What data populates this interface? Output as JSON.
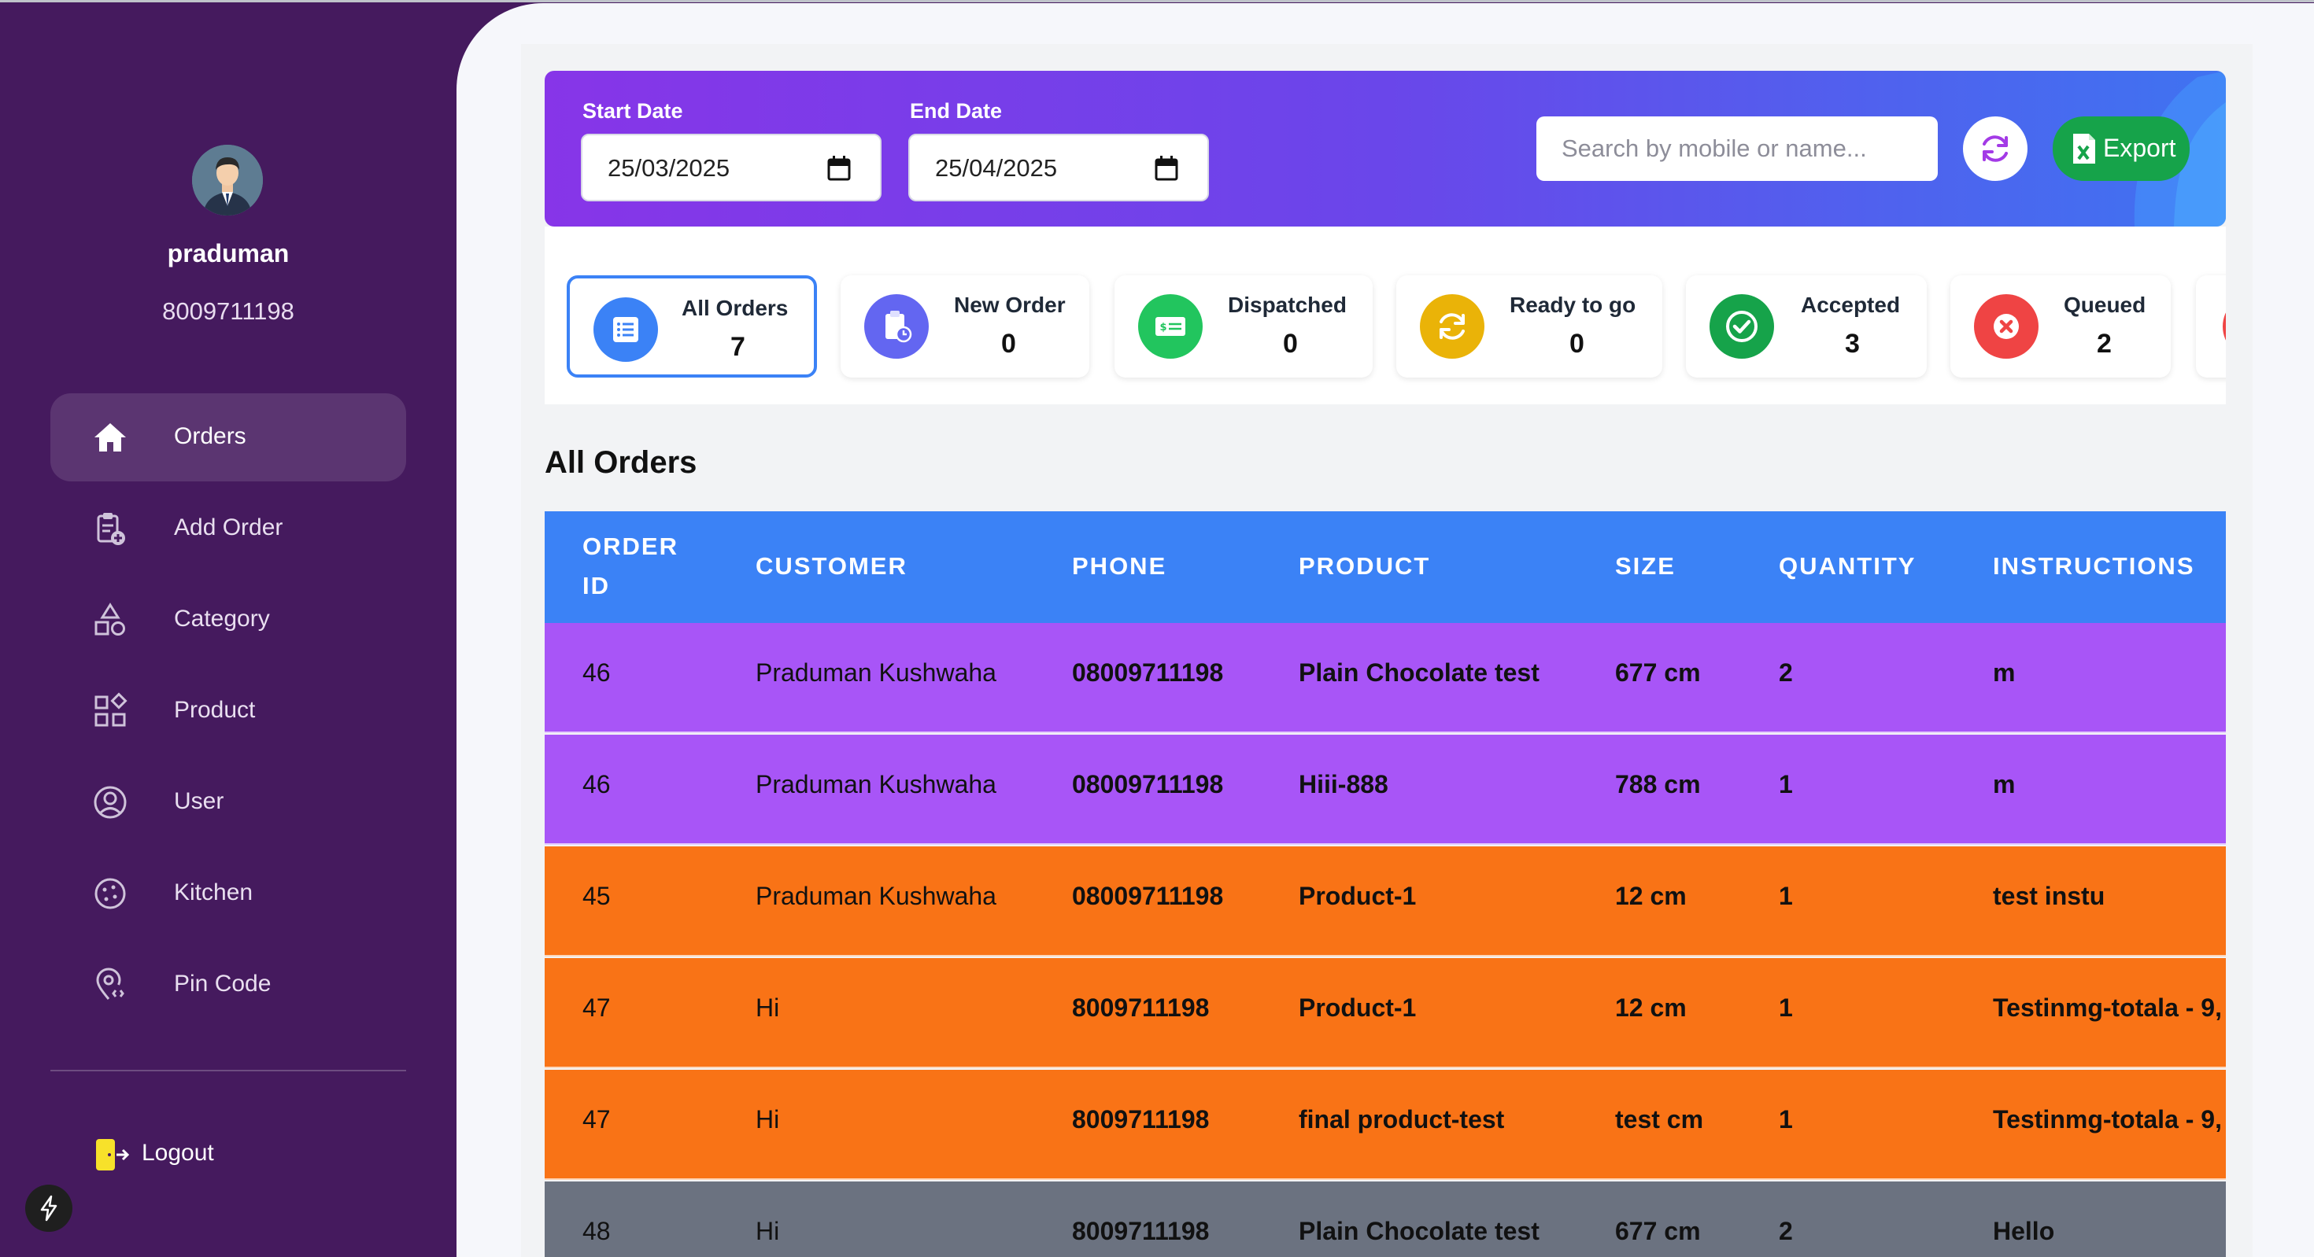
{
  "user": {
    "name": "praduman",
    "phone": "8009711198"
  },
  "nav": {
    "items": [
      {
        "label": "Orders",
        "icon": "home-icon",
        "active": true
      },
      {
        "label": "Add Order",
        "icon": "clipboard-add-icon",
        "active": false
      },
      {
        "label": "Category",
        "icon": "shapes-icon",
        "active": false
      },
      {
        "label": "Product",
        "icon": "grid-icon",
        "active": false
      },
      {
        "label": "User",
        "icon": "user-circle-icon",
        "active": false
      },
      {
        "label": "Kitchen",
        "icon": "cookie-icon",
        "active": false
      },
      {
        "label": "Pin Code",
        "icon": "location-pin-icon",
        "active": false
      }
    ],
    "logout_label": "Logout"
  },
  "filters": {
    "start_label": "Start Date",
    "start_value": "25/03/2025",
    "end_label": "End Date",
    "end_value": "25/04/2025",
    "search_placeholder": "Search by mobile or name...",
    "export_label": "Export"
  },
  "status_cards": [
    {
      "label": "All Orders",
      "count": "7",
      "color": "#3b82f6",
      "icon": "list-icon"
    },
    {
      "label": "New Order",
      "count": "0",
      "color": "#6366f1",
      "icon": "clipboard-clock-icon"
    },
    {
      "label": "Dispatched",
      "count": "0",
      "color": "#22c55e",
      "icon": "money-icon"
    },
    {
      "label": "Ready to go",
      "count": "0",
      "color": "#eab308",
      "icon": "sync-icon"
    },
    {
      "label": "Accepted",
      "count": "3",
      "color": "#16a34a",
      "icon": "check-circle-icon"
    },
    {
      "label": "Queued",
      "count": "2",
      "color": "#ef4444",
      "icon": "x-circle-icon"
    }
  ],
  "orders": {
    "title": "All Orders",
    "columns": [
      "ORDER ID",
      "CUSTOMER",
      "PHONE",
      "PRODUCT",
      "SIZE",
      "QUANTITY",
      "INSTRUCTIONS"
    ],
    "rows": [
      {
        "id": "46",
        "customer": "Praduman Kushwaha",
        "phone": "08009711198",
        "product": "Plain Chocolate test",
        "size": "677 cm",
        "quantity": "2",
        "instructions": "m",
        "color": "#a855f7"
      },
      {
        "id": "46",
        "customer": "Praduman Kushwaha",
        "phone": "08009711198",
        "product": "Hiii-888",
        "size": "788 cm",
        "quantity": "1",
        "instructions": "m",
        "color": "#a855f7"
      },
      {
        "id": "45",
        "customer": "Praduman Kushwaha",
        "phone": "08009711198",
        "product": "Product-1",
        "size": "12 cm",
        "quantity": "1",
        "instructions": "test instu",
        "color": "#f97316"
      },
      {
        "id": "47",
        "customer": "Hi",
        "phone": "8009711198",
        "product": "Product-1",
        "size": "12 cm",
        "quantity": "1",
        "instructions": "Testinmg-totala - 9,",
        "color": "#f97316"
      },
      {
        "id": "47",
        "customer": "Hi",
        "phone": "8009711198",
        "product": "final product-test",
        "size": "test cm",
        "quantity": "1",
        "instructions": "Testinmg-totala - 9,",
        "color": "#f97316"
      },
      {
        "id": "48",
        "customer": "Hi",
        "phone": "8009711198",
        "product": "Plain Chocolate test",
        "size": "677 cm",
        "quantity": "2",
        "instructions": "Hello",
        "color": "#6b7280"
      }
    ]
  }
}
